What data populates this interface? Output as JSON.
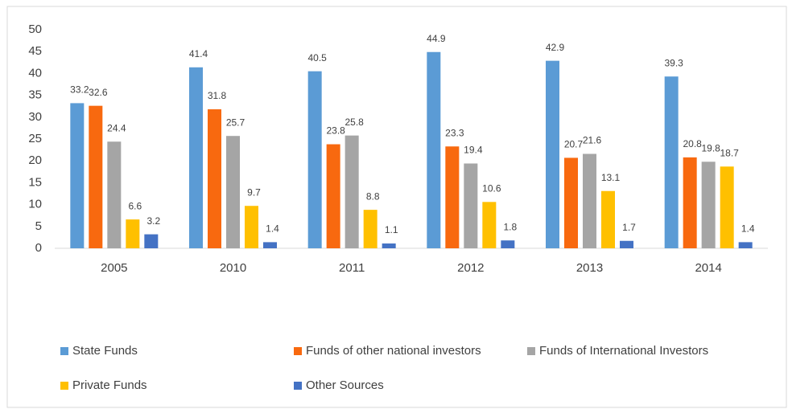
{
  "chart_data": {
    "type": "bar",
    "categories": [
      "2005",
      "2010",
      "2011",
      "2012",
      "2013",
      "2014"
    ],
    "series": [
      {
        "name": "State Funds",
        "color": "#5b9bd5",
        "values": [
          33.2,
          41.4,
          40.5,
          44.9,
          42.9,
          39.3
        ]
      },
      {
        "name": "Funds of other national investors",
        "color": "#f8690f",
        "values": [
          32.6,
          31.8,
          23.8,
          23.3,
          20.7,
          20.8
        ]
      },
      {
        "name": "Funds of International Investors",
        "color": "#a5a5a5",
        "values": [
          24.4,
          25.7,
          25.8,
          19.4,
          21.6,
          19.8
        ]
      },
      {
        "name": "Private Funds",
        "color": "#ffc000",
        "values": [
          6.6,
          9.7,
          8.8,
          10.6,
          13.1,
          18.7
        ]
      },
      {
        "name": "Other Sources",
        "color": "#4472c4",
        "values": [
          3.2,
          1.4,
          1.1,
          1.8,
          1.7,
          1.4
        ]
      }
    ],
    "ylim": [
      0,
      50
    ],
    "yticks": [
      0,
      5,
      10,
      15,
      20,
      25,
      30,
      35,
      40,
      45,
      50
    ],
    "grid": false,
    "legend": "bottom"
  }
}
